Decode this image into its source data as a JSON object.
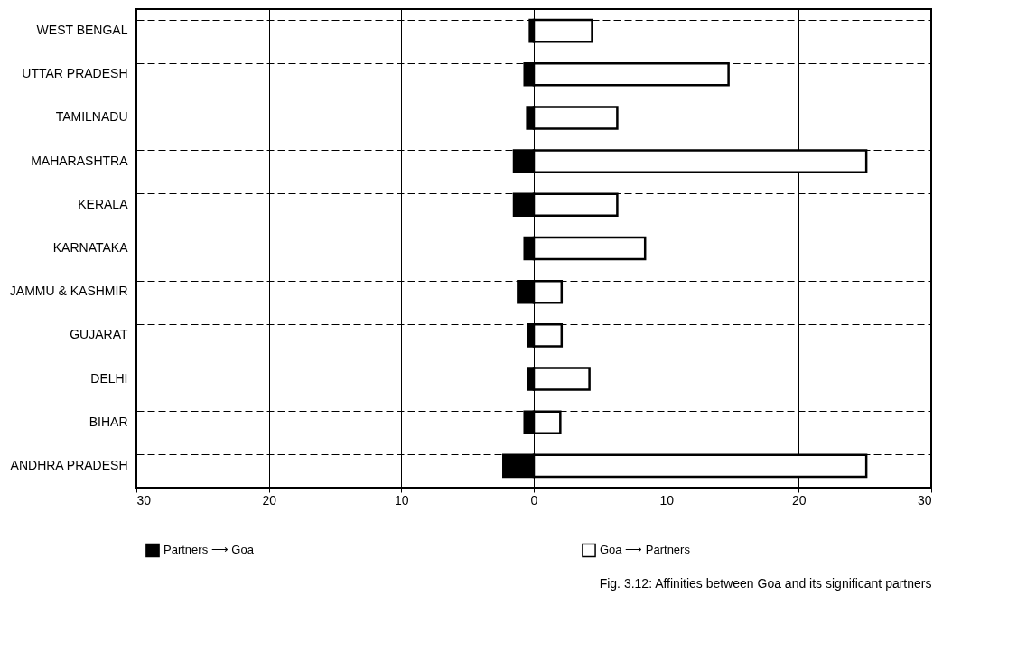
{
  "chart_data": {
    "type": "bar",
    "orientation": "horizontal",
    "categories": [
      "WEST BENGAL",
      "UTTAR PRADESH",
      "TAMILNADU",
      "MAHARASHTRA",
      "KERALA",
      "KARNATAKA",
      "JAMMU & KASHMIR",
      "GUJARAT",
      "DELHI",
      "BIHAR",
      "ANDHRA PRADESH"
    ],
    "series": [
      {
        "name": "Partners ⟶ Goa",
        "color": "#000000",
        "values": [
          -0.3,
          -0.7,
          -0.5,
          -1.5,
          -1.5,
          -0.7,
          -1.2,
          -0.4,
          -0.4,
          -0.7,
          -2.3
        ]
      },
      {
        "name": "Goa ⟶ Partners",
        "color": "#ffffff",
        "values": [
          4.4,
          14.7,
          6.3,
          25.1,
          6.3,
          8.4,
          2.1,
          2.1,
          4.2,
          2.0,
          25.1
        ]
      }
    ],
    "xlim": [
      -30,
      30
    ],
    "xticks": [
      {
        "value": -30,
        "label": "30"
      },
      {
        "value": -20,
        "label": "20"
      },
      {
        "value": -10,
        "label": "10"
      },
      0,
      10,
      20,
      30
    ],
    "grid": true,
    "legend": "bottom",
    "stacked": true,
    "annotations": [
      "Fig. 3.12: Affinities between Goa and its significant partners"
    ]
  }
}
